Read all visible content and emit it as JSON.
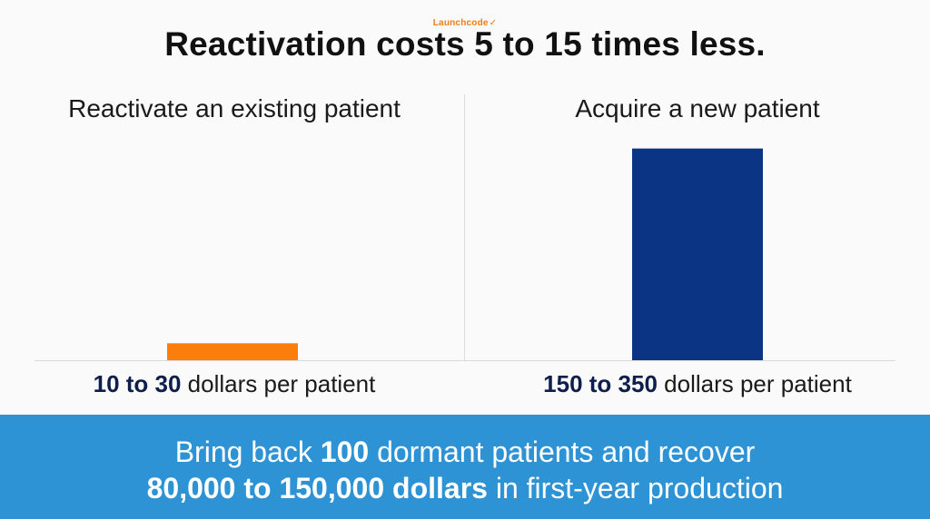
{
  "brand": {
    "name": "Launchcode",
    "mark_icon": "checkmark-swoosh-icon",
    "color": "#f07c12"
  },
  "title": "Reactivation costs 5 to 15 times less.",
  "chart_data": {
    "type": "bar",
    "categories": [
      "Reactivate an existing patient",
      "Acquire a new patient"
    ],
    "value_labels": [
      {
        "bold": "10 to 30",
        "rest": " dollars per patient"
      },
      {
        "bold": "150 to 350",
        "rest": " dollars per patient"
      }
    ],
    "values": [
      20,
      250
    ],
    "ylim": [
      0,
      300
    ],
    "colors": [
      "#fb7d0b",
      "#0b3584"
    ],
    "grid": false,
    "legend": "none"
  },
  "footer": {
    "line1": {
      "pre": "Bring back ",
      "bold": "100",
      "post": " dormant patients and recover"
    },
    "line2": {
      "bold": "80,000 to 150,000 dollars",
      "post": " in first-year production"
    },
    "background": "#2d93d5"
  }
}
